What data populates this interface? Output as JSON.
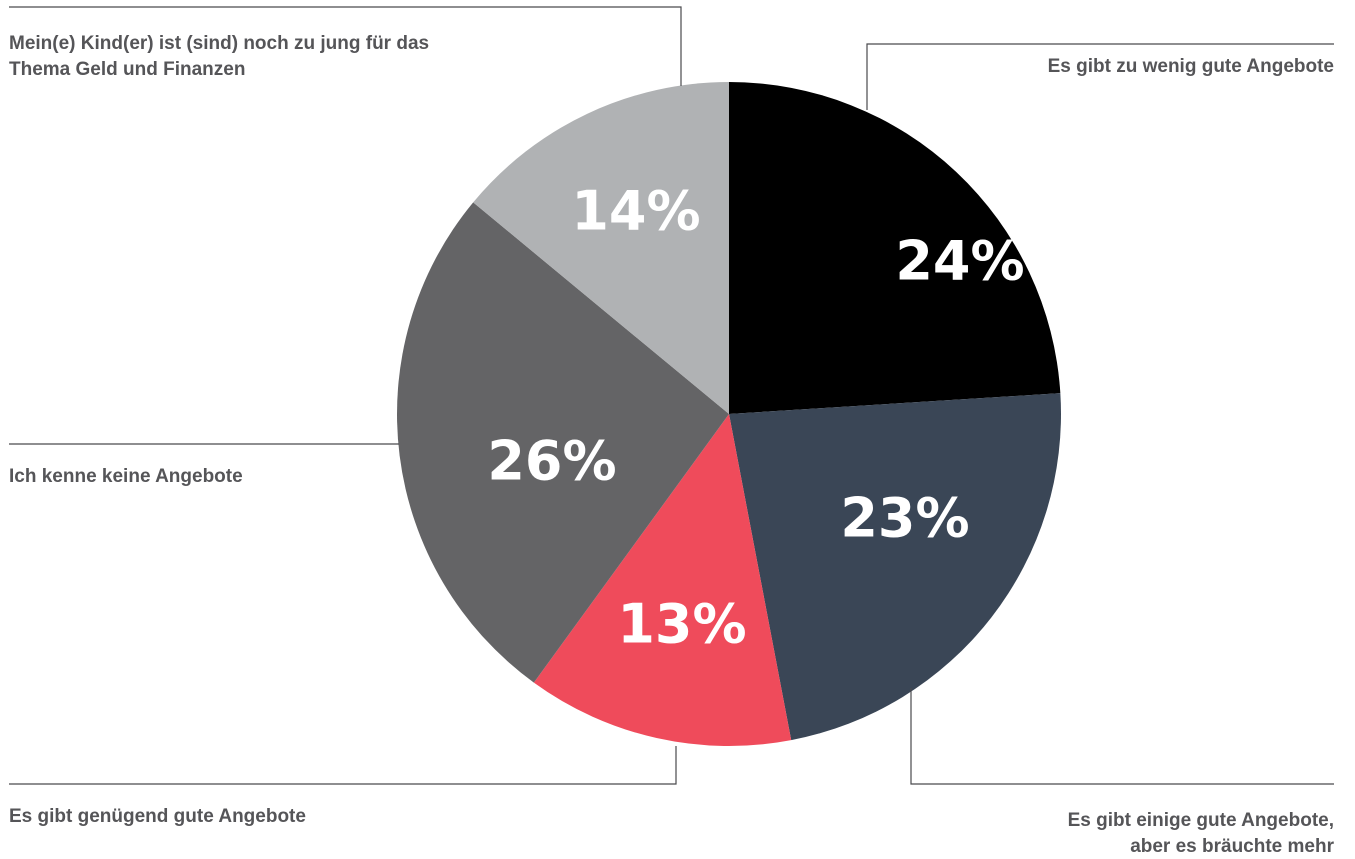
{
  "chart_data": {
    "type": "pie",
    "categories": [
      "Es gibt zu wenig gute Angebote",
      "Es gibt einige gute Angebote, aber es bräuchte mehr",
      "Es gibt genügend gute Angebote",
      "Ich kenne keine Angebote",
      "Mein(e) Kind(er) ist (sind) noch zu jung für das Thema Geld und Finanzen"
    ],
    "values": [
      24,
      23,
      13,
      26,
      14
    ],
    "value_labels": [
      "24%",
      "23%",
      "13%",
      "26%",
      "14%"
    ],
    "label_lines": [
      [
        "Es gibt zu wenig gute Angebote"
      ],
      [
        "Es gibt einige gute Angebote,",
        "aber es bräuchte mehr"
      ],
      [
        "Es gibt genügend gute Angebote"
      ],
      [
        "Ich kenne keine Angebote"
      ],
      [
        "Mein(e) Kind(er) ist (sind) noch zu jung für das",
        "Thema Geld und Finanzen"
      ]
    ],
    "colors": [
      "#000000",
      "#3a4656",
      "#ef4b5b",
      "#646466",
      "#b0b2b4"
    ],
    "start": "12 o'clock",
    "direction": "clockwise",
    "legend": "none",
    "title": ""
  }
}
